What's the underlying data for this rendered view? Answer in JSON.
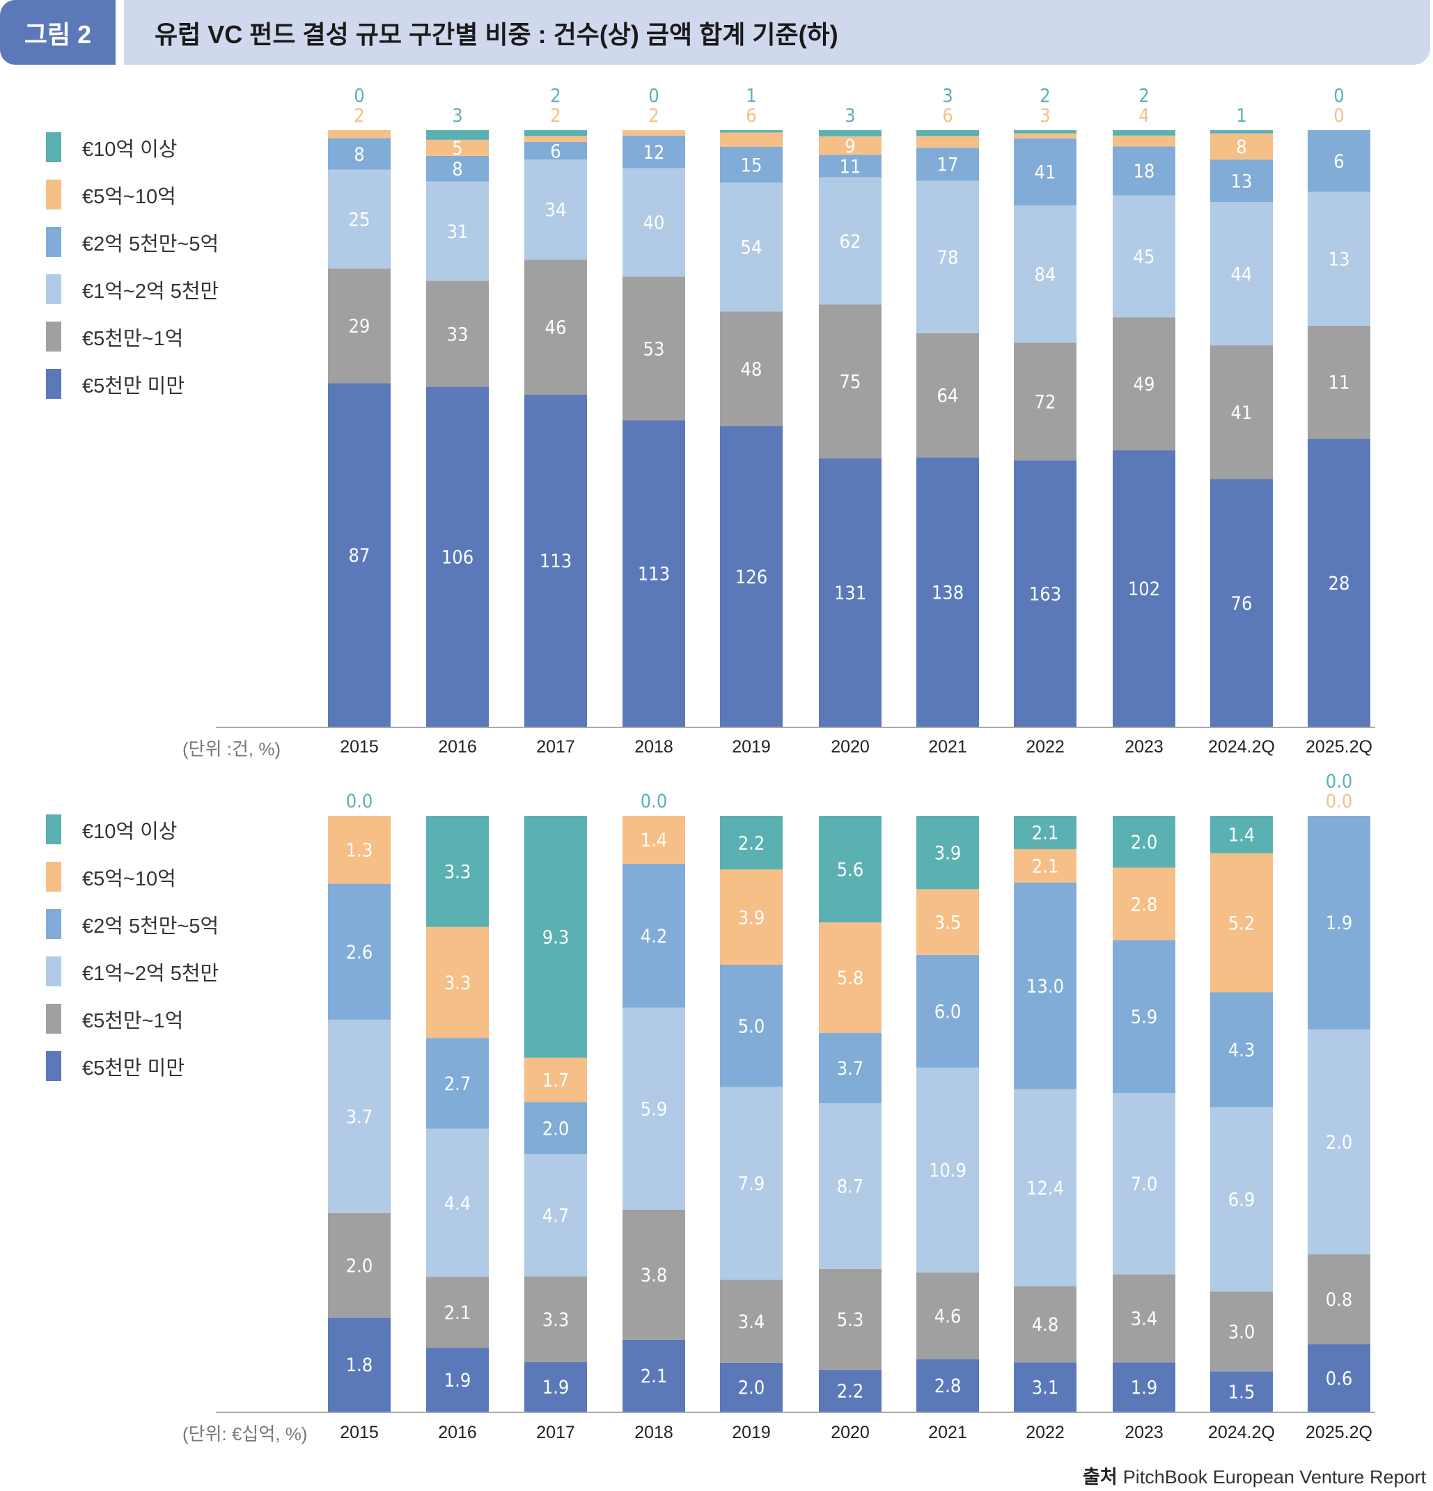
{
  "header": {
    "figure_tag": "그림 2",
    "title": "유럽 VC 펀드 결성 규모 구간별 비중 : 건수(상) 금액 합계 기준(하)"
  },
  "source": {
    "label": "출처",
    "text": "PitchBook European Venture Report"
  },
  "colors": {
    "over_1b": "#5bb1b1",
    "500m_1b": "#f5bf87",
    "250m_500m": "#80acd7",
    "100m_250m": "#b1cbe6",
    "50m_100m": "#a0a0a0",
    "under_50m": "#5b79b9"
  },
  "legend_top": [
    {
      "key": "over_1b",
      "label": "€10억 이상"
    },
    {
      "key": "500m_1b",
      "label": "€5억~10억"
    },
    {
      "key": "250m_500m",
      "label": "€2억 5천만~5억"
    },
    {
      "key": "100m_250m",
      "label": "€1억~2억 5천만"
    },
    {
      "key": "50m_100m",
      "label": "€5천만~1억"
    },
    {
      "key": "under_50m",
      "label": "€5천만 미만"
    }
  ],
  "legend_bottom": [
    {
      "key": "over_1b",
      "label": "€10억 이상"
    },
    {
      "key": "500m_1b",
      "label": "€5억~10억"
    },
    {
      "key": "250m_500m",
      "label": "€2억 5천만~5억"
    },
    {
      "key": "100m_250m",
      "label": "€1억~2억 5천만"
    },
    {
      "key": "50m_100m",
      "label": "€5천만~1억"
    },
    {
      "key": "under_50m",
      "label": "€5천만 미만"
    }
  ],
  "chart_data": [
    {
      "type": "bar",
      "stacked": "percent",
      "title": "건수 기준",
      "unit_label": "(단위 :건, %)",
      "categories": [
        "2015",
        "2016",
        "2017",
        "2018",
        "2019",
        "2020",
        "2021",
        "2022",
        "2023",
        "2024.2Q",
        "2025.2Q"
      ],
      "series": [
        {
          "key": "under_50m",
          "name": "€5천만 미만",
          "values": [
            87,
            106,
            113,
            113,
            126,
            131,
            138,
            163,
            102,
            76,
            28
          ]
        },
        {
          "key": "50m_100m",
          "name": "€5천만~1억",
          "values": [
            29,
            33,
            46,
            53,
            48,
            75,
            64,
            72,
            49,
            41,
            11
          ]
        },
        {
          "key": "100m_250m",
          "name": "€1억~2억 5천만",
          "values": [
            25,
            31,
            34,
            40,
            54,
            62,
            78,
            84,
            45,
            44,
            13
          ]
        },
        {
          "key": "250m_500m",
          "name": "€2억 5천만~5억",
          "values": [
            8,
            8,
            6,
            12,
            15,
            11,
            17,
            41,
            18,
            13,
            6
          ]
        },
        {
          "key": "500m_1b",
          "name": "€5억~10억",
          "values": [
            2,
            5,
            2,
            2,
            6,
            9,
            6,
            3,
            4,
            8,
            0
          ]
        },
        {
          "key": "over_1b",
          "name": "€10억 이상",
          "values": [
            0,
            3,
            2,
            0,
            1,
            3,
            3,
            2,
            2,
            1,
            0
          ]
        }
      ],
      "decimals": 0,
      "legend": "left"
    },
    {
      "type": "bar",
      "stacked": "percent",
      "title": "금액 합계 기준",
      "unit_label": "(단위: €십억, %)",
      "categories": [
        "2015",
        "2016",
        "2017",
        "2018",
        "2019",
        "2020",
        "2021",
        "2022",
        "2023",
        "2024.2Q",
        "2025.2Q"
      ],
      "series": [
        {
          "key": "under_50m",
          "name": "€5천만 미만",
          "values": [
            1.8,
            1.9,
            1.9,
            2.1,
            2.0,
            2.2,
            2.8,
            3.1,
            1.9,
            1.5,
            0.6
          ]
        },
        {
          "key": "50m_100m",
          "name": "€5천만~1억",
          "values": [
            2.0,
            2.1,
            3.3,
            3.8,
            3.4,
            5.3,
            4.6,
            4.8,
            3.4,
            3.0,
            0.8
          ]
        },
        {
          "key": "100m_250m",
          "name": "€1억~2억 5천만",
          "values": [
            3.7,
            4.4,
            4.7,
            5.9,
            7.9,
            8.7,
            10.9,
            12.4,
            7.0,
            6.9,
            2.0
          ]
        },
        {
          "key": "250m_500m",
          "name": "€2억 5천만~5억",
          "values": [
            2.6,
            2.7,
            2.0,
            4.2,
            5.0,
            3.7,
            6.0,
            13.0,
            5.9,
            4.3,
            1.9
          ]
        },
        {
          "key": "500m_1b",
          "name": "€5억~10억",
          "values": [
            1.3,
            3.3,
            1.7,
            1.4,
            3.9,
            5.8,
            3.5,
            2.1,
            2.8,
            5.2,
            0.0
          ]
        },
        {
          "key": "over_1b",
          "name": "€10억 이상",
          "values": [
            0.0,
            3.3,
            9.3,
            0.0,
            2.2,
            5.6,
            3.9,
            2.1,
            2.0,
            1.4,
            0.0
          ]
        }
      ],
      "decimals": 1,
      "legend": "left"
    }
  ]
}
